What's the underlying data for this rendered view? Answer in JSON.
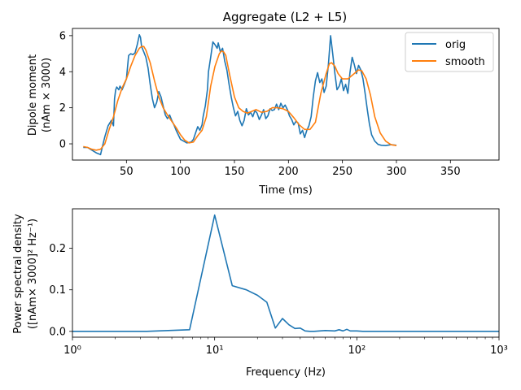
{
  "chart_data": [
    {
      "type": "line",
      "title": "Aggregate (L2 + L5)",
      "xlabel": "Time (ms)",
      "ylabel_line1": "Dipole moment",
      "ylabel_line2": "(nAm × 3000)",
      "xlim": [
        0,
        395
      ],
      "ylim": [
        -0.9,
        6.4
      ],
      "xticks": [
        50,
        100,
        150,
        200,
        250,
        300,
        350
      ],
      "yticks": [
        0,
        2,
        4,
        6
      ],
      "legend_position": "top-right",
      "series": [
        {
          "name": "orig",
          "color": "#1f77b4",
          "x": [
            10,
            14,
            18,
            22,
            26,
            28,
            30,
            33,
            36,
            38,
            39,
            40,
            41,
            43,
            44,
            46,
            48,
            50,
            52,
            54,
            56,
            58,
            60,
            62,
            63,
            64,
            66,
            68,
            70,
            72,
            74,
            76,
            78,
            80,
            82,
            84,
            86,
            88,
            90,
            92,
            94,
            96,
            98,
            100,
            103,
            106,
            110,
            112,
            114,
            116,
            118,
            120,
            121,
            123,
            125,
            126,
            128,
            130,
            132,
            134,
            135,
            137,
            139,
            141,
            143,
            145,
            147,
            149,
            151,
            153,
            155,
            157,
            159,
            161,
            163,
            165,
            167,
            169,
            171,
            173,
            175,
            177,
            179,
            181,
            183,
            185,
            187,
            189,
            191,
            193,
            195,
            197,
            199,
            201,
            203,
            205,
            207,
            209,
            211,
            213,
            215,
            217,
            219,
            221,
            223,
            225,
            227,
            229,
            231,
            233,
            235,
            237,
            239,
            241,
            243,
            245,
            247,
            249,
            251,
            253,
            255,
            257,
            259,
            261,
            263,
            265,
            267,
            269,
            271,
            273,
            275,
            277,
            280,
            283,
            286,
            290,
            295,
            300
          ],
          "y": [
            -0.2,
            -0.2,
            -0.35,
            -0.5,
            -0.6,
            -0.1,
            0.4,
            1.0,
            1.3,
            1.0,
            2.5,
            3.0,
            3.15,
            3.0,
            3.2,
            3.0,
            3.3,
            3.6,
            4.9,
            5.0,
            4.95,
            5.05,
            5.5,
            6.05,
            5.9,
            5.4,
            5.1,
            4.8,
            4.2,
            3.3,
            2.5,
            2.0,
            2.3,
            2.9,
            2.6,
            2.1,
            1.6,
            1.4,
            1.6,
            1.3,
            1.05,
            0.75,
            0.5,
            0.25,
            0.15,
            0.05,
            0.1,
            0.25,
            0.6,
            0.95,
            0.75,
            1.05,
            1.5,
            2.1,
            3.0,
            4.0,
            4.8,
            5.65,
            5.5,
            5.3,
            5.6,
            5.1,
            5.3,
            4.6,
            4.1,
            3.3,
            2.6,
            2.0,
            1.55,
            1.8,
            1.3,
            1.0,
            1.3,
            1.95,
            1.6,
            1.75,
            1.5,
            1.85,
            1.7,
            1.35,
            1.6,
            1.9,
            1.4,
            1.55,
            1.95,
            1.85,
            1.9,
            2.2,
            1.9,
            2.25,
            2.0,
            2.15,
            1.9,
            1.55,
            1.35,
            1.05,
            1.25,
            1.15,
            0.55,
            0.75,
            0.35,
            0.75,
            1.0,
            1.5,
            2.6,
            3.5,
            3.95,
            3.4,
            3.6,
            2.85,
            3.2,
            4.4,
            6.0,
            5.0,
            3.9,
            3.0,
            3.2,
            3.6,
            2.95,
            3.3,
            2.8,
            3.95,
            4.8,
            4.4,
            3.9,
            4.35,
            4.1,
            3.6,
            2.8,
            1.9,
            1.1,
            0.5,
            0.15,
            -0.03,
            -0.08,
            -0.1,
            -0.05,
            -0.08
          ]
        },
        {
          "name": "smooth",
          "color": "#ff7f0e",
          "x": [
            10,
            14,
            18,
            22,
            26,
            30,
            34,
            38,
            42,
            46,
            50,
            54,
            58,
            62,
            64,
            66,
            68,
            72,
            76,
            80,
            84,
            88,
            92,
            96,
            100,
            104,
            108,
            112,
            116,
            120,
            124,
            128,
            132,
            136,
            138,
            140,
            142,
            144,
            146,
            150,
            154,
            158,
            162,
            166,
            170,
            175,
            180,
            185,
            190,
            195,
            200,
            205,
            210,
            215,
            220,
            225,
            230,
            235,
            238,
            240,
            243,
            246,
            250,
            255,
            260,
            265,
            268,
            272,
            276,
            280,
            285,
            290,
            295,
            300
          ],
          "y": [
            -0.15,
            -0.2,
            -0.3,
            -0.35,
            -0.3,
            0.0,
            0.8,
            1.5,
            2.4,
            3.1,
            3.6,
            4.3,
            4.9,
            5.3,
            5.4,
            5.4,
            5.2,
            4.5,
            3.5,
            2.6,
            2.0,
            1.6,
            1.25,
            0.9,
            0.5,
            0.2,
            0.05,
            0.1,
            0.45,
            0.75,
            1.5,
            3.2,
            4.3,
            5.0,
            5.15,
            5.1,
            4.9,
            4.3,
            3.7,
            2.6,
            2.0,
            1.8,
            1.7,
            1.8,
            1.9,
            1.75,
            1.8,
            2.0,
            2.0,
            1.95,
            1.8,
            1.45,
            1.05,
            0.8,
            0.8,
            1.2,
            2.8,
            3.9,
            4.45,
            4.5,
            4.3,
            3.9,
            3.6,
            3.6,
            3.85,
            4.1,
            4.05,
            3.6,
            2.7,
            1.5,
            0.6,
            0.15,
            -0.05,
            -0.1
          ]
        }
      ]
    },
    {
      "type": "line",
      "title": "",
      "xlabel": "Frequency (Hz)",
      "ylabel_line1": "Power spectral density",
      "ylabel_line2": "([nAm× 3000]² Hz⁻¹)",
      "xscale": "log",
      "xlim": [
        1,
        1000
      ],
      "ylim": [
        -0.014,
        0.295
      ],
      "xticks": [
        1,
        10,
        100,
        1000
      ],
      "xtick_labels": [
        "10⁰",
        "10¹",
        "10²",
        "10³"
      ],
      "yticks": [
        0.0,
        0.1,
        0.2
      ],
      "ytick_labels": [
        "0.0",
        "0.1",
        "0.2"
      ],
      "series": [
        {
          "name": "",
          "color": "#1f77b4",
          "x": [
            1,
            3.33,
            6.67,
            10,
            13.3,
            16.7,
            20,
            23.3,
            26.7,
            30,
            33.3,
            36.7,
            40,
            43.3,
            46.7,
            50,
            60,
            70,
            75,
            80,
            85,
            90,
            95,
            100,
            110,
            120,
            150,
            200,
            300,
            500,
            1000
          ],
          "y": [
            0.0,
            0.0,
            0.004,
            0.28,
            0.11,
            0.1,
            0.087,
            0.07,
            0.008,
            0.031,
            0.016,
            0.007,
            0.008,
            0.001,
            0.0,
            0.0,
            0.002,
            0.001,
            0.004,
            0.001,
            0.005,
            0.001,
            0.001,
            0.001,
            0.0,
            0.0,
            0.0,
            0.0,
            0.0,
            0.0,
            0.0
          ]
        }
      ]
    }
  ]
}
